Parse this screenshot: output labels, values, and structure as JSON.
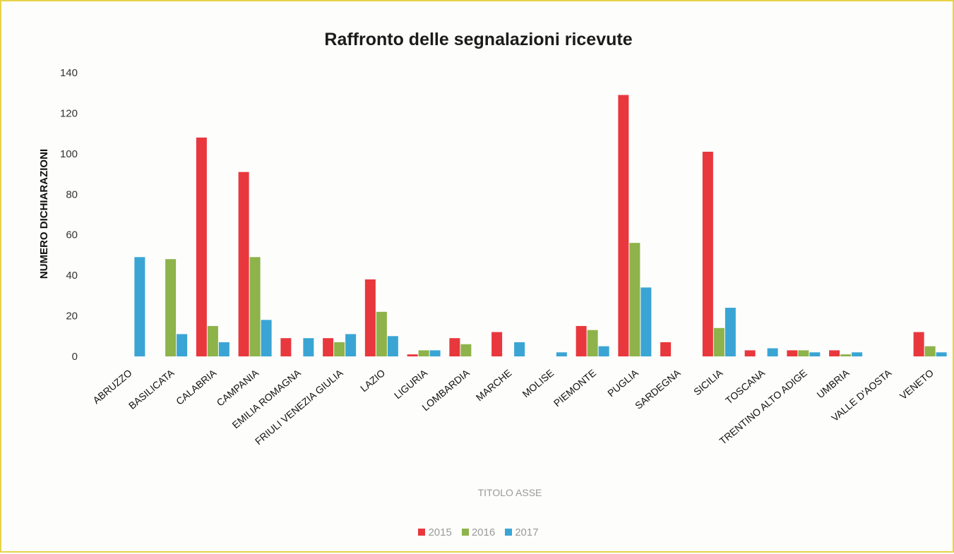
{
  "chart_data": {
    "type": "bar",
    "title": "Raffronto delle segnalazioni ricevute",
    "xlabel": "TITOLO ASSE",
    "ylabel": "NUMERO DICHIARAZIONI",
    "ylim": [
      0,
      140
    ],
    "yticks": [
      "0",
      "20",
      "40",
      "60",
      "80",
      "100",
      "120",
      "140"
    ],
    "grid": false,
    "legend_position": "bottom",
    "categories": [
      "ABRUZZO",
      "BASILICATA",
      "CALABRIA",
      "CAMPANIA",
      "EMILIA ROMAGNA",
      "FRIULI VENEZIA GIULIA",
      "LAZIO",
      "LIGURIA",
      "LOMBARDIA",
      "MARCHE",
      "MOLISE",
      "PIEMONTE",
      "PUGLIA",
      "SARDEGNA",
      "SICILIA",
      "TOSCANA",
      "TRENTINO ALTO ADIGE",
      "UMBRIA",
      "VALLE D'AOSTA",
      "VENETO"
    ],
    "series": [
      {
        "name": "2015",
        "color": "#e8383d",
        "values": [
          0,
          0,
          108,
          91,
          9,
          9,
          38,
          1,
          9,
          12,
          0,
          15,
          129,
          7,
          101,
          3,
          3,
          3,
          0,
          12
        ]
      },
      {
        "name": "2016",
        "color": "#8db34a",
        "values": [
          0,
          48,
          15,
          49,
          0,
          7,
          22,
          3,
          6,
          0,
          0,
          13,
          56,
          0,
          14,
          0,
          3,
          1,
          0,
          5
        ]
      },
      {
        "name": "2017",
        "color": "#3aa5d4",
        "values": [
          49,
          11,
          7,
          18,
          9,
          11,
          10,
          3,
          0,
          7,
          2,
          5,
          34,
          0,
          24,
          4,
          2,
          2,
          0,
          2
        ]
      }
    ]
  }
}
